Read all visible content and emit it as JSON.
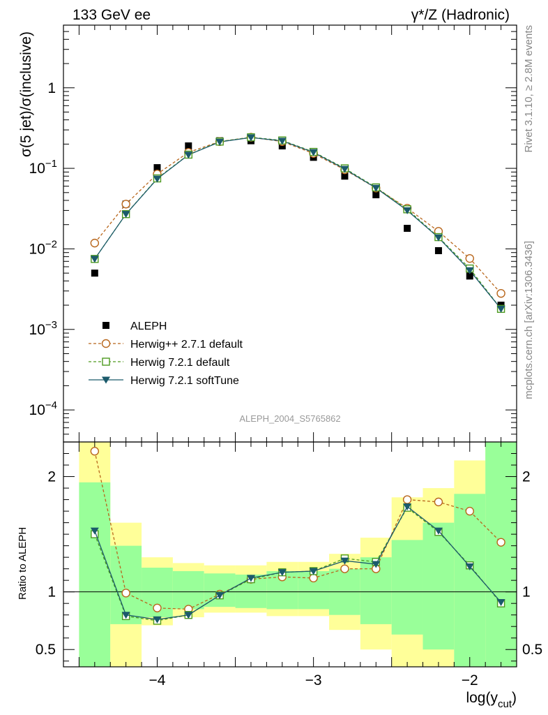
{
  "header": {
    "left": "133 GeV ee",
    "right": "γ*/Z (Hadronic)"
  },
  "side_labels": {
    "rivet": "Rivet 3.1.10, ≥ 2.8M events",
    "mcplots": "mcplots.cern.ch [arXiv:1306.3436]"
  },
  "analysis_id": "ALEPH_2004_S5765862",
  "colors": {
    "aleph": "#000000",
    "herwigpp": "#b8661b",
    "herwig721": "#4d9a1f",
    "softtune": "#1b5a6b",
    "band_yellow": "#ffff99",
    "band_green": "#99ff99"
  },
  "chart_data": [
    {
      "type": "scatter",
      "title": "",
      "xlabel": "",
      "ylabel": "σ(5 jet)/σ(inclusive)",
      "yscale": "log",
      "xlim": [
        -4.6,
        -1.7
      ],
      "ylim": [
        4e-05,
        6
      ],
      "y_ticks": [
        {
          "v": 0.0001,
          "m": "10",
          "e": "−4"
        },
        {
          "v": 0.001,
          "m": "10",
          "e": "−3"
        },
        {
          "v": 0.01,
          "m": "10",
          "e": "−2"
        },
        {
          "v": 0.1,
          "m": "10",
          "e": "−1"
        },
        {
          "v": 1,
          "m": "1",
          "e": ""
        }
      ],
      "legend_position": "lower-left",
      "x": [
        -4.4,
        -4.2,
        -4.0,
        -3.8,
        -3.6,
        -3.4,
        -3.2,
        -3.0,
        -2.8,
        -2.6,
        -2.4,
        -2.2,
        -2.0,
        -1.8
      ],
      "series": [
        {
          "key": "aleph",
          "name": "ALEPH",
          "marker": "square-filled",
          "values": [
            0.005,
            0.036,
            0.102,
            0.19,
            0.22,
            0.22,
            0.19,
            0.137,
            0.08,
            0.047,
            0.018,
            0.0095,
            0.0046,
            0.002
          ]
        },
        {
          "key": "herwigpp",
          "name": "Herwig++ 2.7.1 default",
          "marker": "circle-open",
          "dash": true,
          "values": [
            0.0118,
            0.036,
            0.085,
            0.158,
            0.215,
            0.243,
            0.215,
            0.153,
            0.096,
            0.057,
            0.032,
            0.0165,
            0.0076,
            0.0028
          ]
        },
        {
          "key": "herwig721",
          "name": "Herwig 7.2.1 default",
          "marker": "square-open",
          "dash": true,
          "values": [
            0.0075,
            0.027,
            0.075,
            0.148,
            0.215,
            0.243,
            0.222,
            0.16,
            0.1,
            0.058,
            0.031,
            0.014,
            0.0057,
            0.0018
          ]
        },
        {
          "key": "softtune",
          "name": "Herwig 7.2.1 softTune",
          "marker": "triangle-down-filled",
          "dash": false,
          "values": [
            0.0075,
            0.027,
            0.074,
            0.147,
            0.213,
            0.241,
            0.219,
            0.158,
            0.098,
            0.057,
            0.03,
            0.0138,
            0.0054,
            0.0018
          ]
        }
      ]
    },
    {
      "type": "line",
      "title": "",
      "xlabel": "log(y",
      "xlabel_sub": "cut",
      "xlabel_close": ")",
      "ylabel": "Ratio to ALEPH",
      "xlim": [
        -4.6,
        -1.7
      ],
      "ylim": [
        0.35,
        2.3
      ],
      "x_ticks": [
        {
          "v": -4,
          "label": "−4"
        },
        {
          "v": -3,
          "label": "−3"
        },
        {
          "v": -2,
          "label": "−2"
        }
      ],
      "y_ticks": [
        {
          "v": 0.5,
          "label": "0.5"
        },
        {
          "v": 1,
          "label": "1"
        },
        {
          "v": 2,
          "label": "2"
        }
      ],
      "bins": [
        [
          -4.5,
          -4.3
        ],
        [
          -4.3,
          -4.1
        ],
        [
          -4.1,
          -3.9
        ],
        [
          -3.9,
          -3.7
        ],
        [
          -3.7,
          -3.5
        ],
        [
          -3.5,
          -3.3
        ],
        [
          -3.3,
          -3.1
        ],
        [
          -3.1,
          -2.9
        ],
        [
          -2.9,
          -2.7
        ],
        [
          -2.7,
          -2.5
        ],
        [
          -2.5,
          -2.3
        ],
        [
          -2.3,
          -2.1
        ],
        [
          -2.1,
          -1.9
        ],
        [
          -1.9,
          -1.7
        ]
      ],
      "band_yellow": [
        [
          0.35,
          2.3
        ],
        [
          0.35,
          1.6
        ],
        [
          0.71,
          1.3
        ],
        [
          0.78,
          1.25
        ],
        [
          0.82,
          1.23
        ],
        [
          0.82,
          1.23
        ],
        [
          0.79,
          1.26
        ],
        [
          0.79,
          1.26
        ],
        [
          0.67,
          1.33
        ],
        [
          0.5,
          1.47
        ],
        [
          0.35,
          1.82
        ],
        [
          0.35,
          1.9
        ],
        [
          0.35,
          2.14
        ],
        [
          0.35,
          2.3
        ]
      ],
      "band_green": [
        [
          0.35,
          1.95
        ],
        [
          0.72,
          1.4
        ],
        [
          0.78,
          1.21
        ],
        [
          0.85,
          1.18
        ],
        [
          0.87,
          1.16
        ],
        [
          0.86,
          1.15
        ],
        [
          0.85,
          1.18
        ],
        [
          0.85,
          1.18
        ],
        [
          0.8,
          1.2
        ],
        [
          0.72,
          1.3
        ],
        [
          0.63,
          1.45
        ],
        [
          0.5,
          1.6
        ],
        [
          0.35,
          1.85
        ],
        [
          0.35,
          2.3
        ]
      ],
      "x": [
        -4.4,
        -4.2,
        -4.0,
        -3.8,
        -3.6,
        -3.4,
        -3.2,
        -3.0,
        -2.8,
        -2.6,
        -2.4,
        -2.2,
        -2.0,
        -1.8
      ],
      "series": [
        {
          "key": "herwigpp",
          "values": [
            2.22,
            0.99,
            0.86,
            0.85,
            0.98,
            1.11,
            1.13,
            1.12,
            1.2,
            1.2,
            1.8,
            1.78,
            1.7,
            1.43
          ]
        },
        {
          "key": "herwig721",
          "values": [
            1.5,
            0.79,
            0.75,
            0.8,
            0.97,
            1.11,
            1.17,
            1.18,
            1.29,
            1.26,
            1.73,
            1.52,
            1.23,
            0.9
          ]
        },
        {
          "key": "softtune",
          "values": [
            1.53,
            0.8,
            0.76,
            0.8,
            0.97,
            1.12,
            1.17,
            1.18,
            1.27,
            1.24,
            1.74,
            1.53,
            1.22,
            0.91
          ]
        }
      ]
    }
  ]
}
